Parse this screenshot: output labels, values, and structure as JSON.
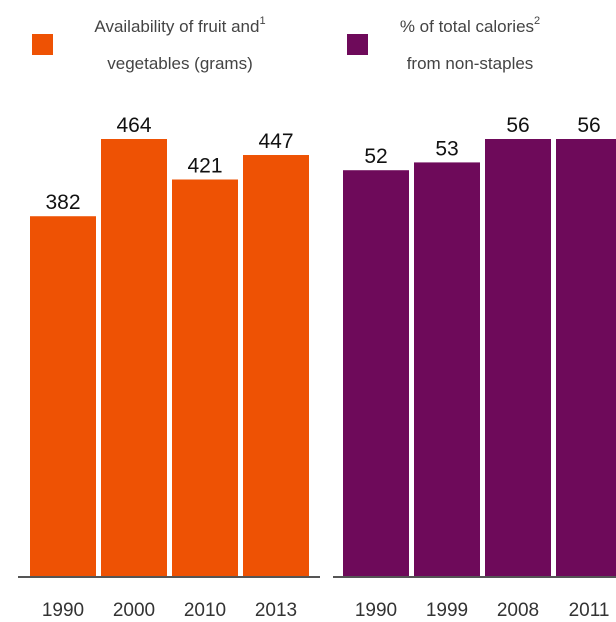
{
  "chart_data": [
    {
      "type": "bar",
      "legend": {
        "text_line1": "Availability of fruit and",
        "sup": "1",
        "text_line2": "vegetables (grams)"
      },
      "color": "#ee5204",
      "categories": [
        "1990",
        "2000",
        "2010",
        "2013"
      ],
      "values": [
        382,
        464,
        421,
        447
      ],
      "data_labels": [
        "382",
        "464",
        "421",
        "447"
      ],
      "ylim": [
        0,
        500
      ]
    },
    {
      "type": "bar",
      "legend": {
        "text_line1": "% of total calories",
        "sup": "2",
        "text_line2": "from non-staples"
      },
      "color": "#6e0a5a",
      "categories": [
        "1990",
        "1999",
        "2008",
        "2011"
      ],
      "values": [
        52,
        53,
        56,
        56
      ],
      "data_labels": [
        "52",
        "53",
        "56",
        "56"
      ],
      "ylim": [
        0,
        60
      ]
    }
  ]
}
